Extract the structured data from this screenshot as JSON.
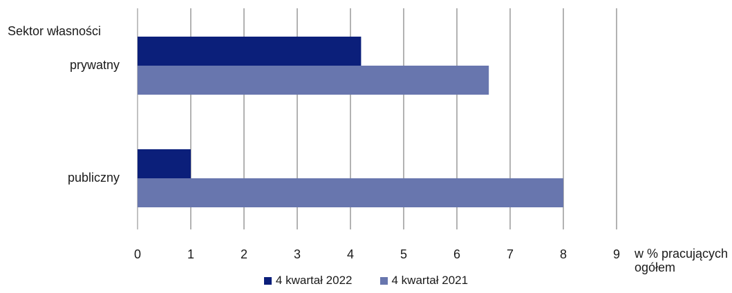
{
  "chart_data": {
    "type": "bar",
    "orientation": "horizontal",
    "category_axis_title": "Sektor własności",
    "categories": [
      "prywatny",
      "publiczny"
    ],
    "series": [
      {
        "name": "4 kwartał 2022",
        "values": [
          4.2,
          1.0
        ],
        "color": "#0b1f7a"
      },
      {
        "name": "4 kwartał 2021",
        "values": [
          6.6,
          8.0
        ],
        "color": "#6876ae"
      }
    ],
    "x_ticks": [
      "0",
      "1",
      "2",
      "3",
      "4",
      "5",
      "6",
      "7",
      "8",
      "9"
    ],
    "xlim": [
      0,
      9
    ],
    "xlabel": "w % pracujących ogółem",
    "grid": true,
    "legend_position": "bottom"
  }
}
